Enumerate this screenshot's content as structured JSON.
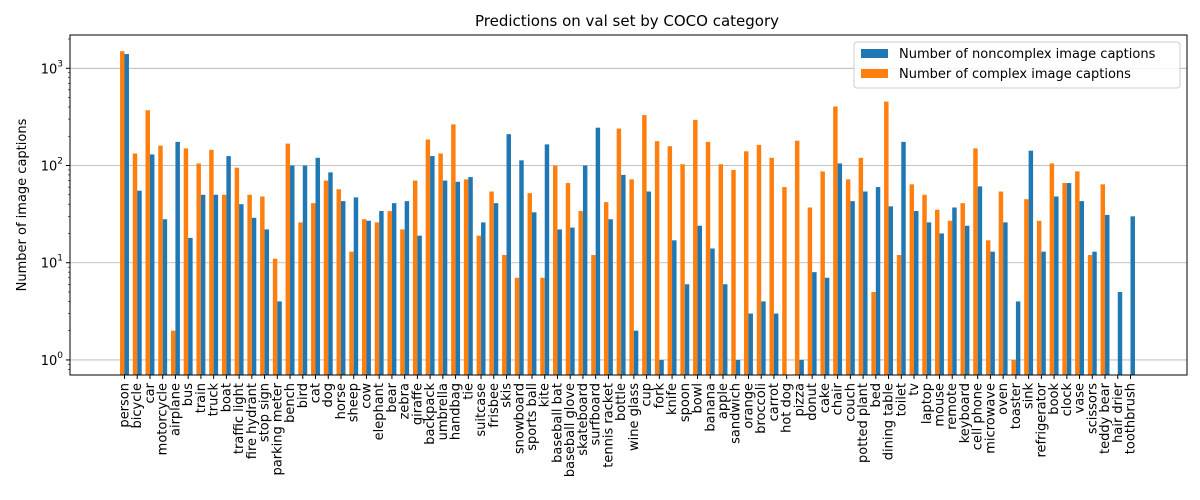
{
  "chart_data": {
    "type": "bar",
    "title": "Predictions on val set by COCO category",
    "ylabel": "Number of image captions",
    "xlabel": "",
    "yscale": "log",
    "ylim": [
      0.7,
      2200
    ],
    "yticks": [
      {
        "value": 1,
        "base": "10",
        "exp": "0"
      },
      {
        "value": 10,
        "base": "10",
        "exp": "1"
      },
      {
        "value": 100,
        "base": "10",
        "exp": "2"
      },
      {
        "value": 1000,
        "base": "10",
        "exp": "3"
      }
    ],
    "grid": "y-major",
    "legend_position": "top-right",
    "categories": [
      "person",
      "bicycle",
      "car",
      "motorcycle",
      "airplane",
      "bus",
      "train",
      "truck",
      "boat",
      "traffic light",
      "fire hydrant",
      "stop sign",
      "parking meter",
      "bench",
      "bird",
      "cat",
      "dog",
      "horse",
      "sheep",
      "cow",
      "elephant",
      "bear",
      "zebra",
      "giraffe",
      "backpack",
      "umbrella",
      "handbag",
      "tie",
      "suitcase",
      "frisbee",
      "skis",
      "snowboard",
      "sports ball",
      "kite",
      "baseball bat",
      "baseball glove",
      "skateboard",
      "surfboard",
      "tennis racket",
      "bottle",
      "wine glass",
      "cup",
      "fork",
      "knife",
      "spoon",
      "bowl",
      "banana",
      "apple",
      "sandwich",
      "orange",
      "broccoli",
      "carrot",
      "hot dog",
      "pizza",
      "donut",
      "cake",
      "chair",
      "couch",
      "potted plant",
      "bed",
      "dining table",
      "toilet",
      "tv",
      "laptop",
      "mouse",
      "remote",
      "keyboard",
      "cell phone",
      "microwave",
      "oven",
      "toaster",
      "sink",
      "refrigerator",
      "book",
      "clock",
      "vase",
      "scissors",
      "teddy bear",
      "hair drier",
      "toothbrush"
    ],
    "series": [
      {
        "name": "Number of noncomplex image captions",
        "color": "#1f77b4",
        "values": [
          1400,
          55,
          130,
          28,
          175,
          18,
          50,
          50,
          125,
          40,
          29,
          22,
          4,
          100,
          100,
          120,
          85,
          43,
          47,
          27,
          34,
          41,
          43,
          19,
          125,
          70,
          68,
          76,
          26,
          41,
          210,
          113,
          33,
          165,
          22,
          23,
          100,
          245,
          28,
          80,
          2,
          54,
          1,
          17,
          6,
          24,
          14,
          6,
          1,
          3,
          4,
          3,
          0,
          1,
          8,
          7,
          105,
          43,
          54,
          60,
          38,
          175,
          34,
          26,
          20,
          37,
          24,
          61,
          13,
          26,
          4,
          142,
          13,
          48,
          66,
          43,
          13,
          31,
          5,
          30
        ]
      },
      {
        "name": "Number of complex image captions",
        "color": "#ff7f0e",
        "values": [
          1500,
          133,
          370,
          160,
          2,
          150,
          105,
          145,
          50,
          95,
          50,
          48,
          11,
          168,
          26,
          41,
          70,
          57,
          13,
          28,
          26,
          34,
          22,
          70,
          185,
          133,
          265,
          72,
          19,
          54,
          12,
          7,
          52,
          7,
          100,
          66,
          34,
          12,
          42,
          240,
          72,
          330,
          178,
          158,
          103,
          295,
          175,
          103,
          90,
          140,
          163,
          120,
          60,
          180,
          37,
          87,
          405,
          72,
          120,
          5,
          455,
          12,
          64,
          50,
          35,
          27,
          41,
          150,
          17,
          54,
          1,
          45,
          27,
          105,
          66,
          87,
          12,
          64,
          0,
          0
        ]
      }
    ]
  }
}
